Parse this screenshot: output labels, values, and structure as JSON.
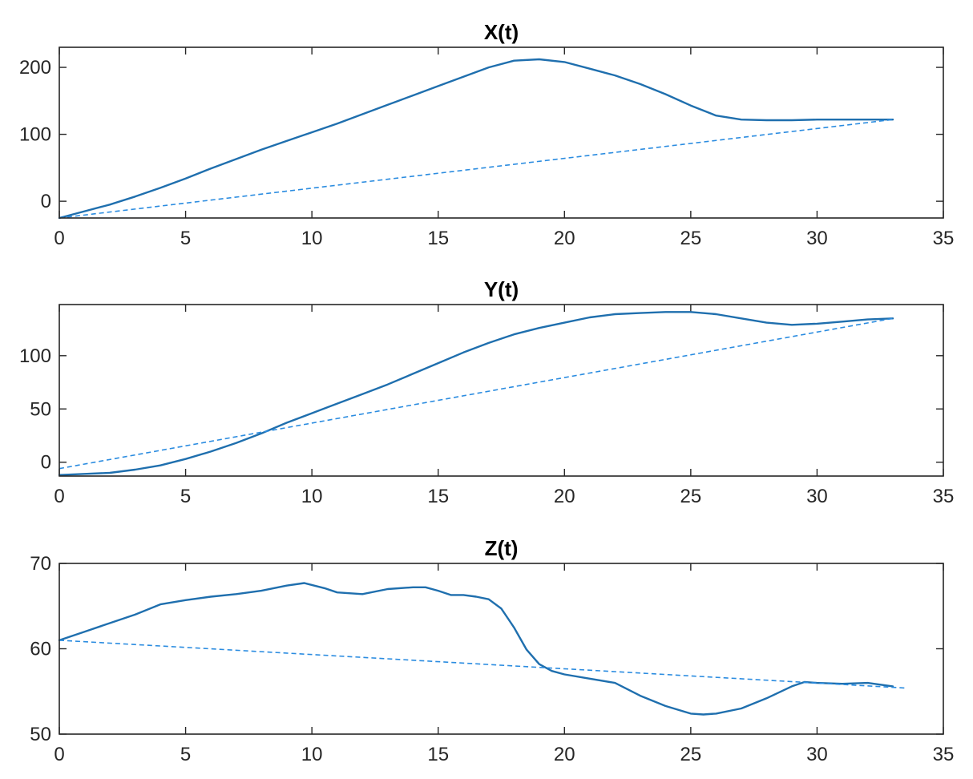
{
  "chart_data": [
    {
      "type": "line",
      "title": "X(t)",
      "xlabel": "",
      "ylabel": "",
      "xlim": [
        0,
        35
      ],
      "ylim": [
        -25,
        230
      ],
      "xticks": [
        0,
        5,
        10,
        15,
        20,
        25,
        30,
        35
      ],
      "yticks": [
        0,
        100,
        200
      ],
      "grid": false,
      "series": [
        {
          "style": "solid",
          "color": "#1f6fae",
          "x": [
            0,
            1,
            2,
            3,
            4,
            5,
            6,
            7,
            8,
            9,
            10,
            11,
            12,
            13,
            14,
            15,
            16,
            17,
            18,
            19,
            20,
            21,
            22,
            23,
            24,
            25,
            26,
            27,
            28,
            29,
            30,
            31,
            32,
            33
          ],
          "y": [
            -25,
            -15,
            -5,
            7,
            20,
            34,
            49,
            63,
            77,
            90,
            103,
            116,
            130,
            144,
            158,
            172,
            186,
            200,
            210,
            212,
            208,
            198,
            188,
            175,
            160,
            143,
            128,
            122,
            121,
            121,
            122,
            122,
            122,
            122
          ]
        },
        {
          "style": "dashed",
          "color": "#2b8ce0",
          "x": [
            0,
            33
          ],
          "y": [
            -25,
            122
          ]
        }
      ]
    },
    {
      "type": "line",
      "title": "Y(t)",
      "xlabel": "",
      "ylabel": "",
      "xlim": [
        0,
        35
      ],
      "ylim": [
        -13,
        148
      ],
      "xticks": [
        0,
        5,
        10,
        15,
        20,
        25,
        30,
        35
      ],
      "yticks": [
        0,
        50,
        100
      ],
      "grid": false,
      "series": [
        {
          "style": "solid",
          "color": "#1f6fae",
          "x": [
            0,
            1,
            2,
            3,
            4,
            5,
            6,
            7,
            8,
            9,
            10,
            11,
            12,
            13,
            14,
            15,
            16,
            17,
            18,
            19,
            20,
            21,
            22,
            23,
            24,
            25,
            26,
            27,
            28,
            29,
            30,
            31,
            32,
            33
          ],
          "y": [
            -12,
            -11,
            -10,
            -7,
            -3,
            3,
            10,
            18,
            27,
            37,
            46,
            55,
            64,
            73,
            83,
            93,
            103,
            112,
            120,
            126,
            131,
            136,
            139,
            140,
            141,
            141,
            139,
            135,
            131,
            129,
            130,
            132,
            134,
            135
          ]
        },
        {
          "style": "dashed",
          "color": "#2b8ce0",
          "x": [
            0,
            33
          ],
          "y": [
            -6,
            135
          ]
        }
      ]
    },
    {
      "type": "line",
      "title": "Z(t)",
      "xlabel": "",
      "ylabel": "",
      "xlim": [
        0,
        35
      ],
      "ylim": [
        50,
        70
      ],
      "xticks": [
        0,
        5,
        10,
        15,
        20,
        25,
        30,
        35
      ],
      "yticks": [
        50,
        60,
        70
      ],
      "grid": false,
      "series": [
        {
          "style": "solid",
          "color": "#1f6fae",
          "x": [
            0,
            1,
            2,
            3,
            4,
            5,
            6,
            7,
            8,
            9,
            9.7,
            10.5,
            11,
            12,
            13,
            14,
            14.5,
            15,
            15.5,
            16,
            16.5,
            17,
            17.5,
            18,
            18.5,
            19,
            19.5,
            20,
            21,
            22,
            23,
            24,
            25,
            25.5,
            26,
            27,
            28,
            29,
            29.5,
            30,
            31,
            32,
            33
          ],
          "y": [
            61,
            62,
            63,
            64,
            65.2,
            65.7,
            66.1,
            66.4,
            66.8,
            67.4,
            67.7,
            67.1,
            66.6,
            66.4,
            67,
            67.2,
            67.2,
            66.8,
            66.3,
            66.3,
            66.1,
            65.8,
            64.7,
            62.5,
            59.9,
            58.2,
            57.4,
            57,
            56.5,
            56,
            54.5,
            53.3,
            52.4,
            52.3,
            52.4,
            53,
            54.2,
            55.6,
            56.1,
            56,
            55.9,
            56,
            55.6
          ]
        },
        {
          "style": "dashed",
          "color": "#2b8ce0",
          "x": [
            0,
            33.5
          ],
          "y": [
            61,
            55.4
          ]
        }
      ]
    }
  ]
}
